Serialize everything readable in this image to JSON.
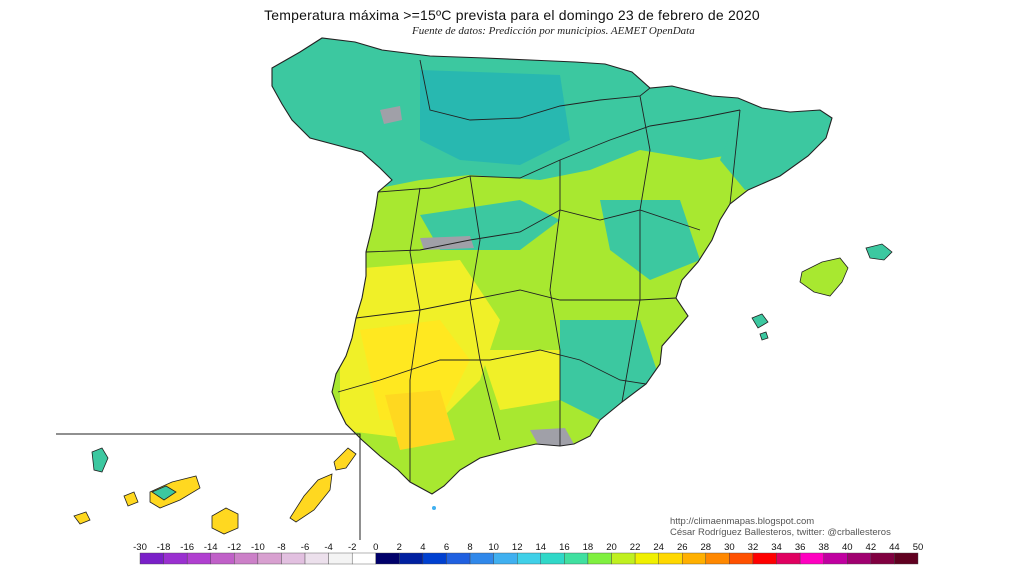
{
  "title": "Temperatura máxima >=15ºC prevista para el domingo 23 de febrero de 2020",
  "source": "Fuente de datos: Predicción por municipios. AEMET OpenData",
  "credit": {
    "url": "http://climaenmapas.blogspot.com",
    "author": "César Rodríguez Ballesteros, twitter: @crballesteros"
  },
  "legend": {
    "labels": [
      "-30",
      "-18",
      "-16",
      "-14",
      "-12",
      "-10",
      "-8",
      "-6",
      "-4",
      "-2",
      "0",
      "2",
      "4",
      "6",
      "8",
      "10",
      "12",
      "14",
      "16",
      "18",
      "20",
      "22",
      "24",
      "26",
      "28",
      "30",
      "32",
      "34",
      "36",
      "38",
      "40",
      "42",
      "44",
      "50"
    ],
    "colors": [
      "#7a20c8",
      "#9a30d0",
      "#b040d0",
      "#c060c8",
      "#cc80c8",
      "#d8a0d0",
      "#e2c0e0",
      "#ece0ec",
      "#f4f4f4",
      "#ffffff",
      "#00006a",
      "#0020a0",
      "#0040d0",
      "#2060e0",
      "#3088ea",
      "#40b0f0",
      "#40d0e8",
      "#30d8c8",
      "#40e0a0",
      "#80f040",
      "#c0f020",
      "#f0f000",
      "#ffd800",
      "#ffb000",
      "#ff8800",
      "#ff5000",
      "#ff0000",
      "#e00060",
      "#ff00c0",
      "#c000a0",
      "#a00070",
      "#800040",
      "#600020"
    ]
  },
  "map_colors": {
    "land_base": "#a8e830",
    "cool": "#3cc8a0",
    "cooler": "#28b8b0",
    "no_data": "#a0a0a8",
    "warm": "#f0f028",
    "warmer": "#ffd820",
    "border": "#222222"
  }
}
